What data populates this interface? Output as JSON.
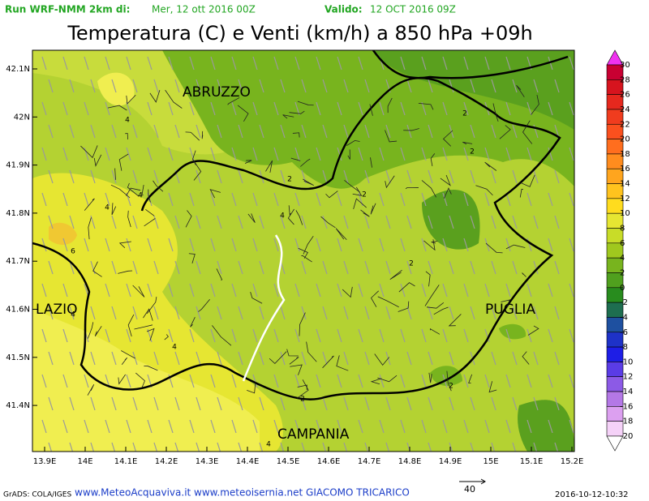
{
  "header": {
    "run_label": "Run WRF-NMM 2km di:",
    "run_date": "Mer, 12 ott 2016 00Z",
    "valid_label": "Valido:",
    "valid_date": "12 OCT 2016 09Z",
    "title": "Temperatura (C) e Venti (km/h) a 850 hPa +09h"
  },
  "lat_labels": [
    "42.1N",
    "42N",
    "41.9N",
    "41.8N",
    "41.7N",
    "41.6N",
    "41.5N",
    "41.4N"
  ],
  "lon_labels": [
    "13.9E",
    "14E",
    "14.1E",
    "14.2E",
    "14.3E",
    "14.4E",
    "14.5E",
    "14.6E",
    "14.7E",
    "14.8E",
    "14.9E",
    "15E",
    "15.1E",
    "15.2E"
  ],
  "regions": [
    "ABRUZZO",
    "LAZIO",
    "PUGLIA",
    "CAMPANIA"
  ],
  "contour_labels": [
    "4",
    "4",
    "4",
    "6",
    "4",
    "4",
    "2",
    "4",
    "2",
    "2",
    "2",
    "2",
    "2",
    "2",
    "4"
  ],
  "colorbar_labels": [
    "30",
    "28",
    "26",
    "24",
    "22",
    "20",
    "18",
    "16",
    "14",
    "12",
    "10",
    "8",
    "6",
    "4",
    "2",
    "0",
    "-2",
    "-4",
    "-6",
    "-8",
    "-10",
    "-12",
    "-14",
    "-16",
    "-18",
    "-20"
  ],
  "footer": {
    "credit": "GrADS: COLA/IGES",
    "sites": "www.MeteoAcquaviva.it www.meteoisernia.net GIACOMO TRICARICO",
    "wind_ref": "40",
    "timestamp": "2016-10-12-10:32"
  }
}
